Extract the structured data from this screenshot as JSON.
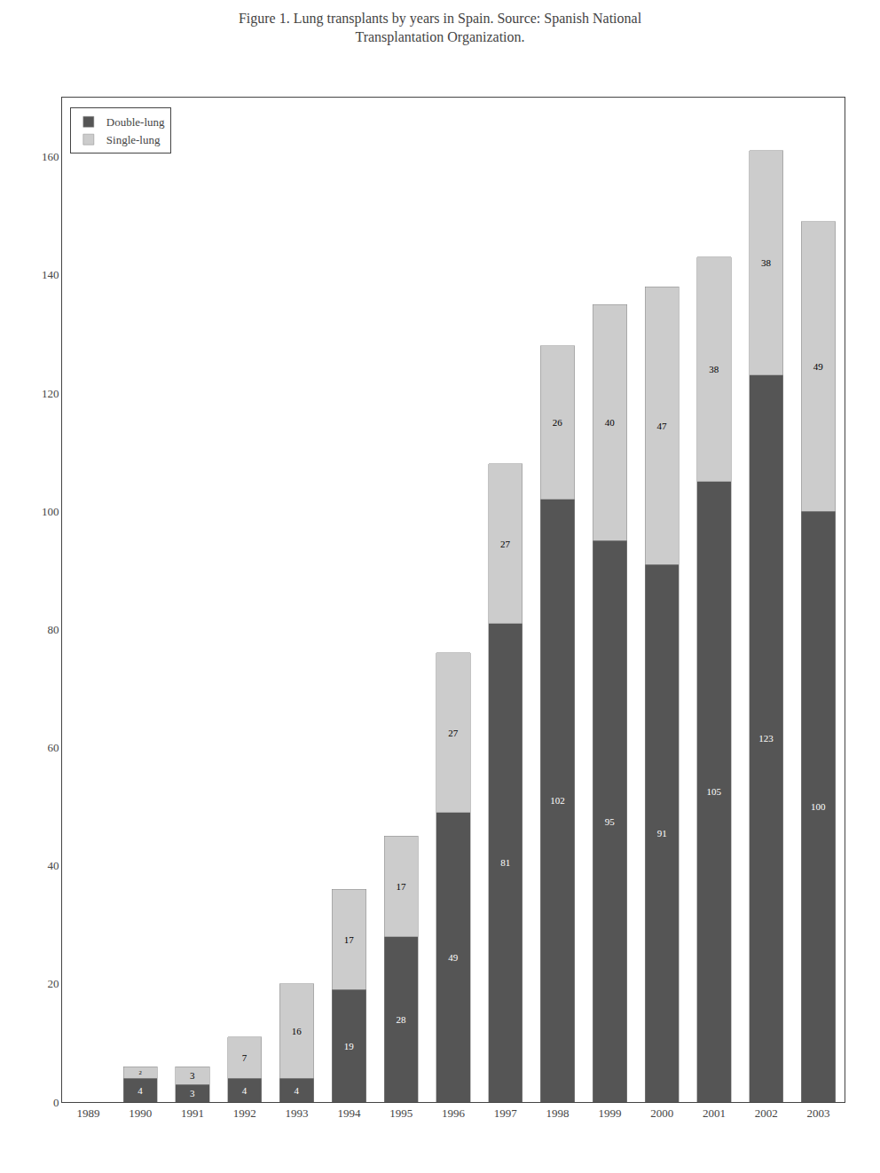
{
  "chart_data": {
    "type": "bar",
    "title": "Figure 1. Lung transplants by years in Spain. Source: Spanish National\nTransplantation Organization.",
    "categories": [
      "1989",
      "1990",
      "1991",
      "1992",
      "1993",
      "1994",
      "1995",
      "1996",
      "1997",
      "1998",
      "1999",
      "2000",
      "2001",
      "2002",
      "2003"
    ],
    "series": [
      {
        "name": "Double-lung",
        "color": "#555555",
        "values": [
          0,
          4,
          3,
          4,
          4,
          19,
          28,
          49,
          81,
          102,
          95,
          91,
          105,
          123,
          100
        ]
      },
      {
        "name": "Single-lung",
        "color": "#cccccc",
        "values": [
          0,
          2,
          3,
          7,
          16,
          17,
          17,
          27,
          27,
          26,
          40,
          47,
          38,
          38,
          49
        ]
      }
    ],
    "stacked": true,
    "data_labels": true,
    "ylim": [
      0,
      170
    ],
    "yticks": [
      0,
      20,
      40,
      60,
      80,
      100,
      120,
      140,
      160
    ],
    "grid": false,
    "legend": "upper left"
  }
}
